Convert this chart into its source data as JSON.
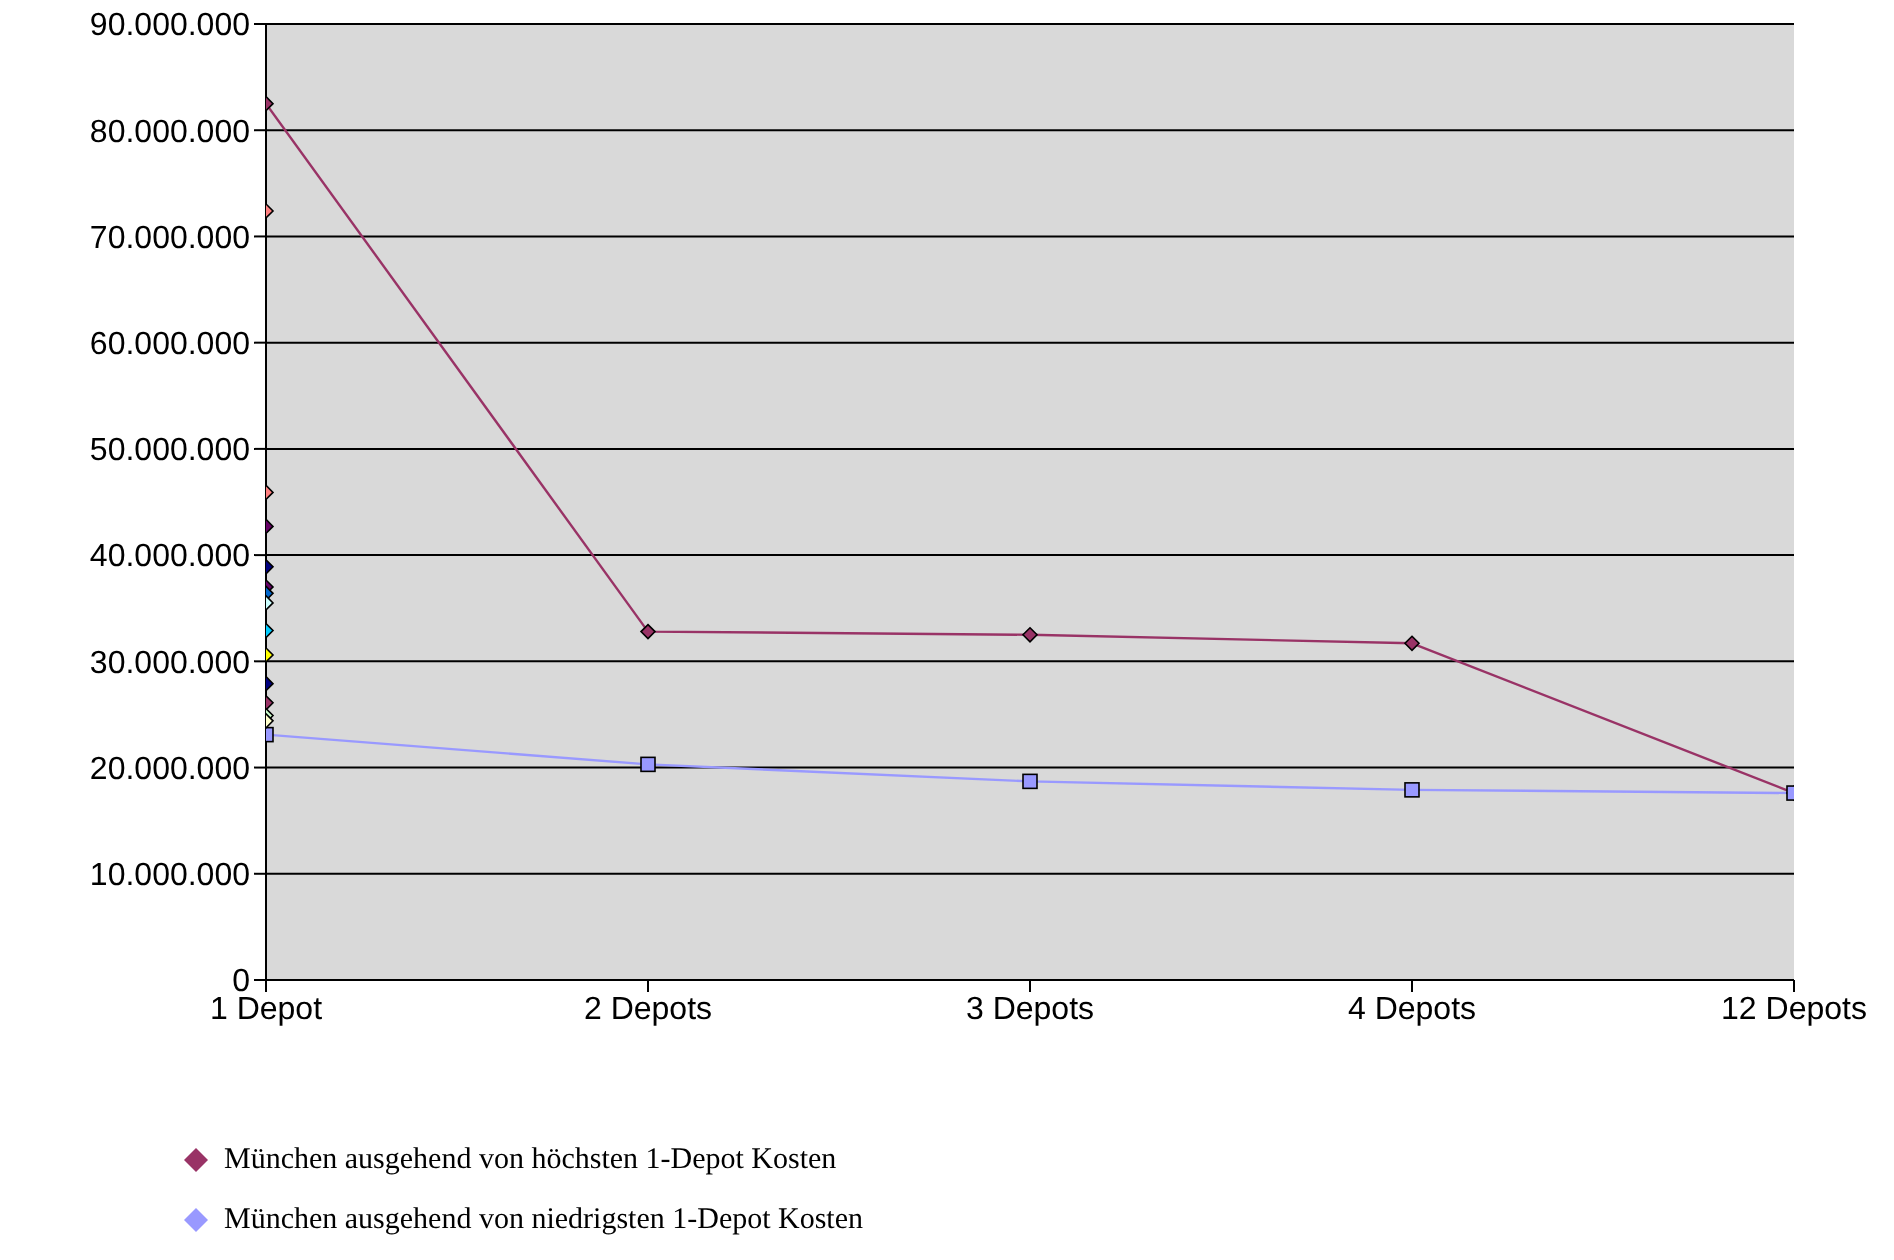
{
  "chart_data": {
    "type": "line",
    "categories": [
      "1 Depot",
      "2 Depots",
      "3 Depots",
      "4 Depots",
      "12 Depots"
    ],
    "ylim": [
      0,
      90000000
    ],
    "yticks": [
      {
        "value": 0,
        "label": "0"
      },
      {
        "value": 10000000,
        "label": "10.000.000"
      },
      {
        "value": 20000000,
        "label": "20.000.000"
      },
      {
        "value": 30000000,
        "label": "30.000.000"
      },
      {
        "value": 40000000,
        "label": "40.000.000"
      },
      {
        "value": 50000000,
        "label": "50.000.000"
      },
      {
        "value": 60000000,
        "label": "60.000.000"
      },
      {
        "value": 70000000,
        "label": "70.000.000"
      },
      {
        "value": 80000000,
        "label": "80.000.000"
      },
      {
        "value": 90000000,
        "label": "90.000.000"
      }
    ],
    "grid": "y",
    "legend": "bottom",
    "series": [
      {
        "name": "München ausgehend von höchsten 1-Depot Kosten",
        "color": "#993366",
        "marker": "diamond",
        "values": [
          82500000,
          32800000,
          32500000,
          31700000,
          17600000
        ]
      },
      {
        "name": "München ausgehend von niedrigsten 1-Depot Kosten",
        "color": "#9999ff",
        "marker": "square",
        "values": [
          23100000,
          20300000,
          18700000,
          17900000,
          17600000
        ]
      },
      {
        "type": "scatter",
        "marker": "diamond",
        "x": [
          "1 Depot",
          "1 Depot",
          "1 Depot",
          "1 Depot",
          "1 Depot",
          "1 Depot",
          "1 Depot",
          "1 Depot",
          "1 Depot",
          "1 Depot",
          "1 Depot",
          "1 Depot",
          "1 Depot"
        ],
        "values": [
          72400000,
          45900000,
          42700000,
          38900000,
          37000000,
          36400000,
          35500000,
          32900000,
          30600000,
          27900000,
          26100000,
          24900000,
          24400000
        ],
        "colors": [
          "#ff8080",
          "#ff8080",
          "#660066",
          "#000080",
          "#660066",
          "#0066cc",
          "#ccffff",
          "#00ccff",
          "#ffff00",
          "#000080",
          "#993366",
          "#ccffcc",
          "#ffffcc"
        ]
      }
    ]
  }
}
